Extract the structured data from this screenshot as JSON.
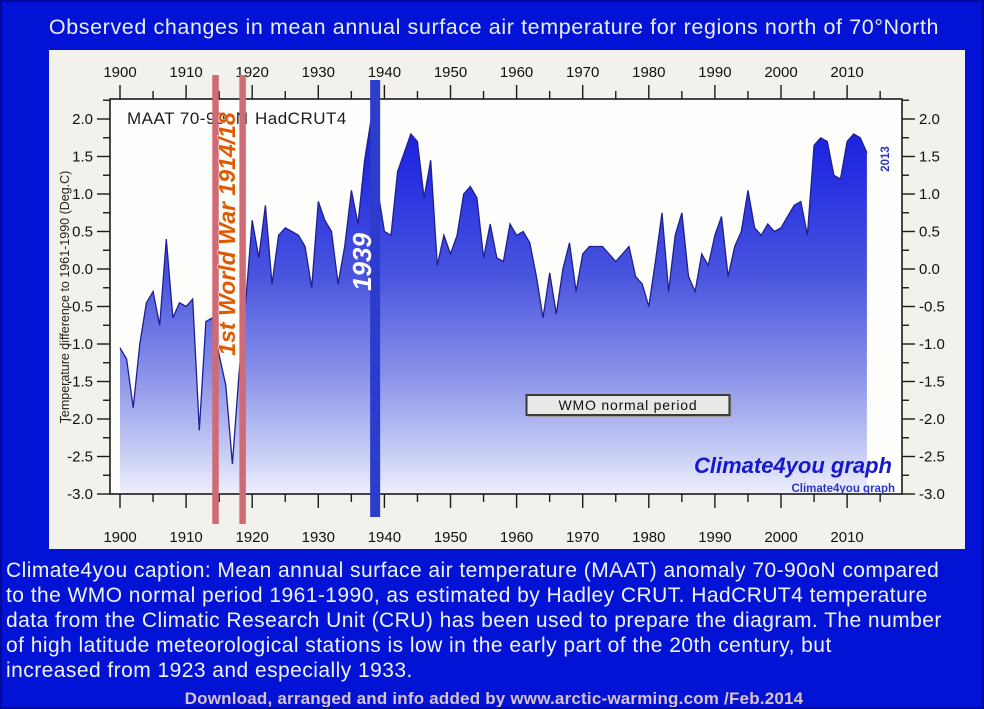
{
  "title": "Observed changes in mean annual surface air temperature for regions north of 70°North",
  "caption": "Climate4you caption: Mean annual surface air temperature (MAAT) anomaly 70-90oN compared\nto the WMO normal period 1961-1990, as estimated by Hadley CRUT. HadCRUT4 temperature\ndata from the Climatic Research Unit (CRU) has been used to prepare the diagram. The number\nof high latitude meteorological stations is low in the early part of the 20th century, but\nincreased from 1923 and especially 1933.",
  "credit": "Download, arranged and info added by www.arctic-warming.com /Feb.2014",
  "colors": {
    "page_background": "#0213d6",
    "page_border": "#000a96",
    "panel_background": "#f2f1ec",
    "plot_background": "#fefefc",
    "axis_frame": "#1a1a1a",
    "tick_label": "#111111",
    "curve_stroke": "#1f1f8f",
    "fill_gradient": [
      "#1717dd",
      "#2630e0",
      "#4a55de",
      "#8a93e9",
      "#c9cef5",
      "#eef0fc"
    ],
    "ww1_line": "#d06b76",
    "ww1_text": "#e05800",
    "bar_1939": "#2c3ccc",
    "text_1939": "#ffffff",
    "brand_blue": "#1518cc",
    "label_2013": "#2a35c8",
    "wmo_box_fill": "#e8e8e6",
    "wmo_box_border": "#3a3a3a"
  },
  "chart_data": {
    "type": "area",
    "maat_label": "MAAT 70-90oN",
    "dataset_label": "HadCRUT4",
    "ylabel": "Temperature difference to 1961-1990 (Deg.C)",
    "ylim": [
      -3.0,
      2.27
    ],
    "xlim": [
      1898.5,
      2018.3
    ],
    "grid": "off",
    "x_years": {
      "start": 1900,
      "end": 2013,
      "step": 1
    },
    "y_tick_labels": [
      "2.0",
      "1.5",
      "1.0",
      "0.5",
      "0.0",
      "-0.5",
      "-1.0",
      "-1.5",
      "-2.0",
      "-2.5",
      "-3.0"
    ],
    "x_tick_labels": [
      "1900",
      "1910",
      "1920",
      "1930",
      "1940",
      "1950",
      "1960",
      "1970",
      "1980",
      "1990",
      "2000",
      "2010"
    ],
    "values": [
      -1.05,
      -1.2,
      -1.85,
      -1.0,
      -0.45,
      -0.3,
      -0.75,
      0.4,
      -0.65,
      -0.45,
      -0.5,
      -0.4,
      -2.15,
      -0.7,
      -0.65,
      -1.15,
      -1.55,
      -2.6,
      -1.4,
      -0.45,
      0.65,
      0.15,
      0.85,
      -0.2,
      0.45,
      0.55,
      0.5,
      0.45,
      0.3,
      -0.25,
      0.9,
      0.65,
      0.5,
      -0.2,
      0.3,
      1.05,
      0.6,
      1.45,
      2.0,
      1.05,
      0.5,
      0.45,
      1.3,
      1.55,
      1.8,
      1.7,
      0.95,
      1.45,
      0.05,
      0.45,
      0.2,
      0.45,
      1.0,
      1.1,
      0.95,
      0.15,
      0.6,
      0.15,
      0.1,
      0.6,
      0.45,
      0.5,
      0.35,
      -0.1,
      -0.65,
      -0.05,
      -0.6,
      0.0,
      0.35,
      -0.3,
      0.2,
      0.3,
      0.3,
      0.3,
      0.2,
      0.1,
      0.2,
      0.3,
      -0.1,
      -0.2,
      -0.5,
      0.1,
      0.75,
      -0.3,
      0.45,
      0.75,
      -0.1,
      -0.3,
      0.2,
      0.05,
      0.45,
      0.7,
      -0.1,
      0.3,
      0.5,
      1.05,
      0.55,
      0.45,
      0.6,
      0.5,
      0.55,
      0.7,
      0.85,
      0.9,
      0.45,
      1.65,
      1.75,
      1.7,
      1.25,
      1.2,
      1.7,
      1.8,
      1.75,
      1.55
    ],
    "annotations": {
      "ww1": {
        "label": "1st World War 1914/18",
        "line_years": [
          1914.45,
          1918.55
        ]
      },
      "year_1939": {
        "label": "1939",
        "bar_year": 1938.6
      },
      "wmo_box": {
        "label": "WMO normal period",
        "from_year": 1961.5,
        "to_year": 1992.2
      },
      "last_year_label": "2013",
      "brand_big": "Climate4you graph",
      "brand_small": "Climate4you graph"
    }
  }
}
